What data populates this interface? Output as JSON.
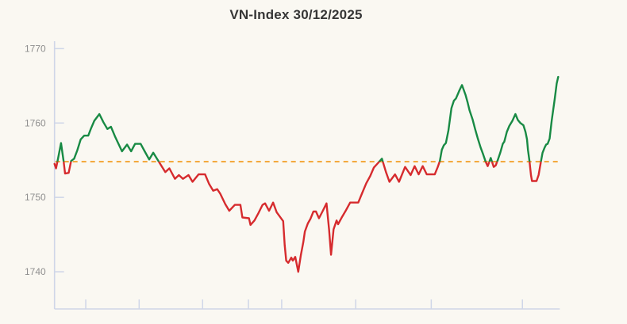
{
  "chart_data": {
    "type": "line",
    "title": "VN-Index 30/12/2025",
    "xlabel": "",
    "ylabel": "",
    "ylim": [
      1735,
      1771
    ],
    "y_ticks": [
      1770,
      1760,
      1750,
      1740
    ],
    "x_axis": {
      "labels_visible": false,
      "tick_positions_pct": [
        6.2,
        16.8,
        29.4,
        38.5,
        45.1,
        59.8,
        74.8,
        92.9
      ]
    },
    "grid": false,
    "legend": "none",
    "reference_line": {
      "value": 1754.8,
      "style": "dashed",
      "color": "#f29b1d"
    },
    "colors": {
      "above_reference": "#188a44",
      "below_reference": "#d62b2e",
      "axis": "#cfd6e8",
      "tick_label": "#8f8f8f",
      "title": "#363636",
      "background": "#faf8f2"
    },
    "series": [
      {
        "name": "VN-Index",
        "x_unit": "percent_of_session",
        "points": [
          [
            0,
            1754.5
          ],
          [
            0.3,
            1753.9
          ],
          [
            0.7,
            1755.2
          ],
          [
            1.3,
            1757.3
          ],
          [
            1.8,
            1754.9
          ],
          [
            2.1,
            1753.2
          ],
          [
            2.8,
            1753.3
          ],
          [
            3.3,
            1754.9
          ],
          [
            3.9,
            1755.2
          ],
          [
            4.5,
            1756.3
          ],
          [
            5.2,
            1757.8
          ],
          [
            5.9,
            1758.3
          ],
          [
            6.7,
            1758.3
          ],
          [
            7.2,
            1759.2
          ],
          [
            7.9,
            1760.3
          ],
          [
            8.9,
            1761.2
          ],
          [
            9.7,
            1760.1
          ],
          [
            10.5,
            1759.2
          ],
          [
            11.2,
            1759.5
          ],
          [
            12,
            1758.2
          ],
          [
            12.9,
            1756.9
          ],
          [
            13.4,
            1756.2
          ],
          [
            14.4,
            1757.1
          ],
          [
            15.2,
            1756.2
          ],
          [
            16,
            1757.2
          ],
          [
            17.1,
            1757.2
          ],
          [
            17.9,
            1756.2
          ],
          [
            18.8,
            1755.1
          ],
          [
            19.6,
            1756
          ],
          [
            20.7,
            1754.8
          ],
          [
            22,
            1753.4
          ],
          [
            22.8,
            1753.9
          ],
          [
            23.9,
            1752.5
          ],
          [
            24.7,
            1753
          ],
          [
            25.5,
            1752.5
          ],
          [
            26.6,
            1753
          ],
          [
            27.4,
            1752.1
          ],
          [
            28.6,
            1753.1
          ],
          [
            29.9,
            1753.1
          ],
          [
            30.7,
            1751.8
          ],
          [
            31.5,
            1750.9
          ],
          [
            32.3,
            1751.1
          ],
          [
            32.9,
            1750.5
          ],
          [
            33.9,
            1749.1
          ],
          [
            34.7,
            1748.2
          ],
          [
            35.8,
            1749
          ],
          [
            36.9,
            1749
          ],
          [
            37.3,
            1747.3
          ],
          [
            38.6,
            1747.2
          ],
          [
            38.9,
            1746.3
          ],
          [
            39.7,
            1746.9
          ],
          [
            40.5,
            1747.9
          ],
          [
            41.3,
            1749
          ],
          [
            41.8,
            1749.2
          ],
          [
            42.6,
            1748.2
          ],
          [
            43.4,
            1749.3
          ],
          [
            44.1,
            1748
          ],
          [
            45.4,
            1746.8
          ],
          [
            45.7,
            1743.6
          ],
          [
            46,
            1741.5
          ],
          [
            46.4,
            1741.2
          ],
          [
            47,
            1741.9
          ],
          [
            47.3,
            1741.5
          ],
          [
            47.8,
            1742
          ],
          [
            48.4,
            1740
          ],
          [
            48.9,
            1742.2
          ],
          [
            49.4,
            1744
          ],
          [
            49.7,
            1745.4
          ],
          [
            50.3,
            1746.5
          ],
          [
            50.8,
            1747.1
          ],
          [
            51.4,
            1748.1
          ],
          [
            51.9,
            1748.1
          ],
          [
            52.5,
            1747.2
          ],
          [
            53.2,
            1748.1
          ],
          [
            54,
            1749.2
          ],
          [
            54.5,
            1745.7
          ],
          [
            54.9,
            1742.3
          ],
          [
            55.4,
            1745.7
          ],
          [
            56,
            1746.9
          ],
          [
            56.3,
            1746.4
          ],
          [
            57.1,
            1747.4
          ],
          [
            57.9,
            1748.3
          ],
          [
            58.7,
            1749.3
          ],
          [
            60.3,
            1749.3
          ],
          [
            61.1,
            1750.6
          ],
          [
            61.9,
            1751.9
          ],
          [
            62.7,
            1752.9
          ],
          [
            63.4,
            1754
          ],
          [
            64.2,
            1754.6
          ],
          [
            65,
            1755.2
          ],
          [
            65.8,
            1753.4
          ],
          [
            66.5,
            1752.1
          ],
          [
            67.6,
            1753.1
          ],
          [
            68.4,
            1752.1
          ],
          [
            69.6,
            1754.1
          ],
          [
            70.7,
            1753
          ],
          [
            71.5,
            1754.2
          ],
          [
            72.3,
            1753.1
          ],
          [
            73.1,
            1754.2
          ],
          [
            73.9,
            1753.1
          ],
          [
            75.5,
            1753.1
          ],
          [
            76.1,
            1754.1
          ],
          [
            76.5,
            1754.9
          ],
          [
            76.9,
            1756.4
          ],
          [
            77.3,
            1757
          ],
          [
            77.7,
            1757.3
          ],
          [
            78.2,
            1759
          ],
          [
            78.5,
            1760.5
          ],
          [
            78.8,
            1762
          ],
          [
            79.3,
            1763
          ],
          [
            79.7,
            1763.3
          ],
          [
            80.4,
            1764.4
          ],
          [
            80.9,
            1765.1
          ],
          [
            81.6,
            1763.8
          ],
          [
            82,
            1762.8
          ],
          [
            82.4,
            1761.7
          ],
          [
            83,
            1760.5
          ],
          [
            83.5,
            1759.2
          ],
          [
            84,
            1758
          ],
          [
            84.6,
            1756.7
          ],
          [
            85.1,
            1755.8
          ],
          [
            85.6,
            1754.8
          ],
          [
            86,
            1754.2
          ],
          [
            86.6,
            1755.3
          ],
          [
            87.2,
            1754.1
          ],
          [
            87.6,
            1754.3
          ],
          [
            88,
            1755
          ],
          [
            88.5,
            1756
          ],
          [
            89,
            1757.2
          ],
          [
            89.3,
            1757.5
          ],
          [
            89.8,
            1758.8
          ],
          [
            90.3,
            1759.6
          ],
          [
            90.9,
            1760.3
          ],
          [
            91.5,
            1761.2
          ],
          [
            92,
            1760.4
          ],
          [
            92.5,
            1760
          ],
          [
            93.1,
            1759.7
          ],
          [
            93.5,
            1758.8
          ],
          [
            93.8,
            1757.8
          ],
          [
            94,
            1756.4
          ],
          [
            94.3,
            1754.9
          ],
          [
            94.6,
            1753
          ],
          [
            94.8,
            1752.2
          ],
          [
            95.7,
            1752.2
          ],
          [
            96.1,
            1753
          ],
          [
            96.6,
            1754.9
          ],
          [
            96.9,
            1756
          ],
          [
            97.3,
            1756.7
          ],
          [
            97.6,
            1757.1
          ],
          [
            97.9,
            1757.2
          ],
          [
            98.3,
            1757.9
          ],
          [
            98.7,
            1760.3
          ],
          [
            99.3,
            1763.2
          ],
          [
            99.7,
            1765.3
          ],
          [
            100,
            1766.2
          ]
        ]
      }
    ]
  }
}
